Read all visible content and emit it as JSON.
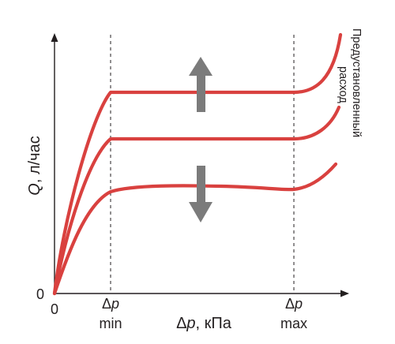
{
  "chart_data": {
    "type": "line",
    "title": "",
    "ylabel_var": "Q",
    "ylabel_unit": ", л/час",
    "xlabel_var": "Δp",
    "xlabel_unit": ", кПа",
    "origin_x_label": "0",
    "origin_y_label": "0",
    "x_ticks": [
      {
        "top": "Δp",
        "bottom": "min"
      },
      {
        "top": "Δp",
        "bottom": "max"
      }
    ],
    "annotation": "Предустановленный расход",
    "annotation_lines": [
      "Предустановленный",
      "расход"
    ],
    "arrows": [
      {
        "direction": "up",
        "meaning": "increase"
      },
      {
        "direction": "down",
        "meaning": "decrease"
      }
    ],
    "grid": false,
    "legend": "none",
    "series": [
      {
        "curve_level": 0.8
      },
      {
        "curve_level": 0.6
      },
      {
        "curve_level": 0.42
      }
    ],
    "colors": {
      "curve": "#d9413f",
      "arrow": "#7b7b7b",
      "axis": "#231f20"
    }
  }
}
